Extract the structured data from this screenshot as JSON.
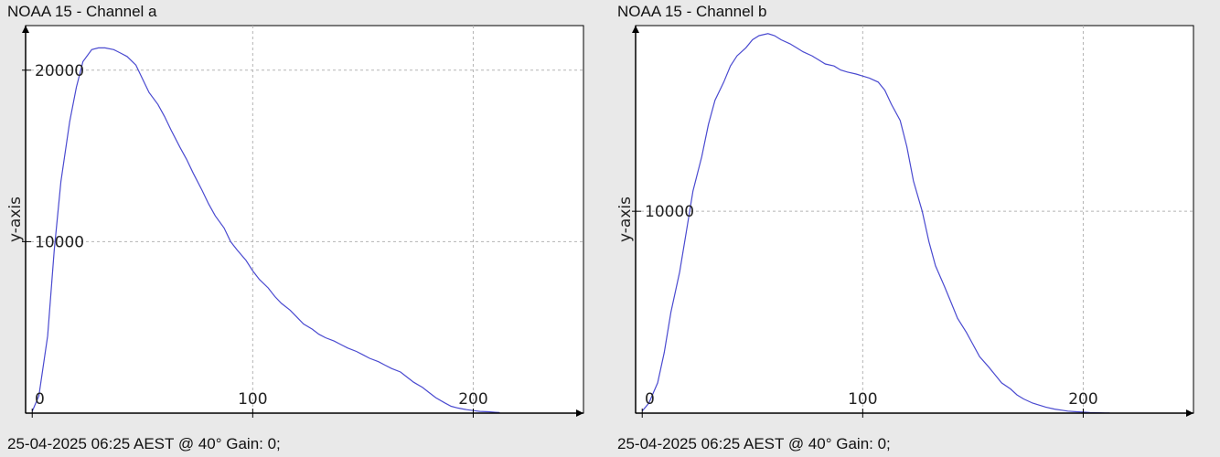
{
  "chart_data": [
    {
      "type": "line",
      "title": "NOAA 15 - Channel a",
      "ylabel": "y-axis",
      "xlabel": "",
      "footer": "25-04-2025 06:25 AEST @ 40° Gain: 0;",
      "xlim": [
        -3,
        250
      ],
      "ylim": [
        0,
        22600
      ],
      "x_ticks": [
        0,
        100,
        200
      ],
      "y_ticks": [
        10000,
        20000
      ],
      "grid": true,
      "line_color": "#4a4ad0",
      "series": [
        {
          "x": [
            0,
            3,
            7,
            10,
            13,
            17,
            20,
            23,
            27,
            30,
            33,
            37,
            40,
            43,
            47,
            50,
            53,
            57,
            60,
            63,
            67,
            70,
            73,
            77,
            80,
            83,
            87,
            90,
            93,
            97,
            100,
            103,
            107,
            110,
            113,
            117,
            120,
            123,
            127,
            130,
            133,
            137,
            140,
            143,
            147,
            150,
            153,
            157,
            160,
            163,
            167,
            170,
            173,
            177,
            180,
            183,
            187,
            190,
            193,
            197,
            200,
            203,
            207,
            210,
            212
          ],
          "y": [
            100,
            1000,
            4500,
            9500,
            13500,
            17000,
            19000,
            20500,
            21200,
            21300,
            21300,
            21200,
            21000,
            20800,
            20300,
            19500,
            18700,
            18000,
            17300,
            16500,
            15500,
            14800,
            14000,
            13000,
            12200,
            11500,
            10800,
            10000,
            9500,
            8900,
            8300,
            7800,
            7300,
            6800,
            6400,
            6000,
            5600,
            5200,
            4900,
            4600,
            4400,
            4200,
            4000,
            3800,
            3600,
            3400,
            3200,
            3000,
            2800,
            2600,
            2400,
            2100,
            1800,
            1500,
            1200,
            900,
            600,
            400,
            300,
            200,
            150,
            100,
            80,
            50,
            30
          ]
        }
      ]
    },
    {
      "type": "line",
      "title": "NOAA 15 - Channel b",
      "ylabel": "y-axis",
      "xlabel": "",
      "footer": "25-04-2025 06:25 AEST @ 40° Gain: 0;",
      "xlim": [
        -3,
        250
      ],
      "ylim": [
        0,
        19200
      ],
      "x_ticks": [
        0,
        100,
        200
      ],
      "y_ticks": [
        10000
      ],
      "grid": true,
      "line_color": "#4a4ad0",
      "series": [
        {
          "x": [
            0,
            3,
            7,
            10,
            13,
            17,
            20,
            23,
            27,
            30,
            33,
            37,
            40,
            43,
            47,
            50,
            53,
            57,
            60,
            63,
            67,
            70,
            73,
            77,
            80,
            83,
            87,
            90,
            93,
            97,
            100,
            103,
            107,
            110,
            113,
            117,
            120,
            123,
            127,
            130,
            133,
            137,
            140,
            143,
            147,
            150,
            153,
            157,
            160,
            163,
            167,
            170,
            173,
            177,
            180,
            183,
            187,
            190,
            193,
            197,
            200,
            203,
            207,
            210,
            212
          ],
          "y": [
            100,
            500,
            1500,
            3000,
            5000,
            7000,
            9000,
            11000,
            12700,
            14300,
            15500,
            16400,
            17200,
            17700,
            18100,
            18500,
            18700,
            18800,
            18700,
            18500,
            18300,
            18100,
            17900,
            17700,
            17500,
            17300,
            17200,
            17000,
            16900,
            16800,
            16700,
            16600,
            16400,
            16000,
            15300,
            14500,
            13200,
            11500,
            10000,
            8500,
            7300,
            6300,
            5500,
            4700,
            4000,
            3400,
            2800,
            2300,
            1900,
            1500,
            1200,
            900,
            700,
            500,
            400,
            300,
            200,
            150,
            100,
            70,
            50,
            30,
            20,
            10,
            5
          ]
        }
      ]
    }
  ]
}
